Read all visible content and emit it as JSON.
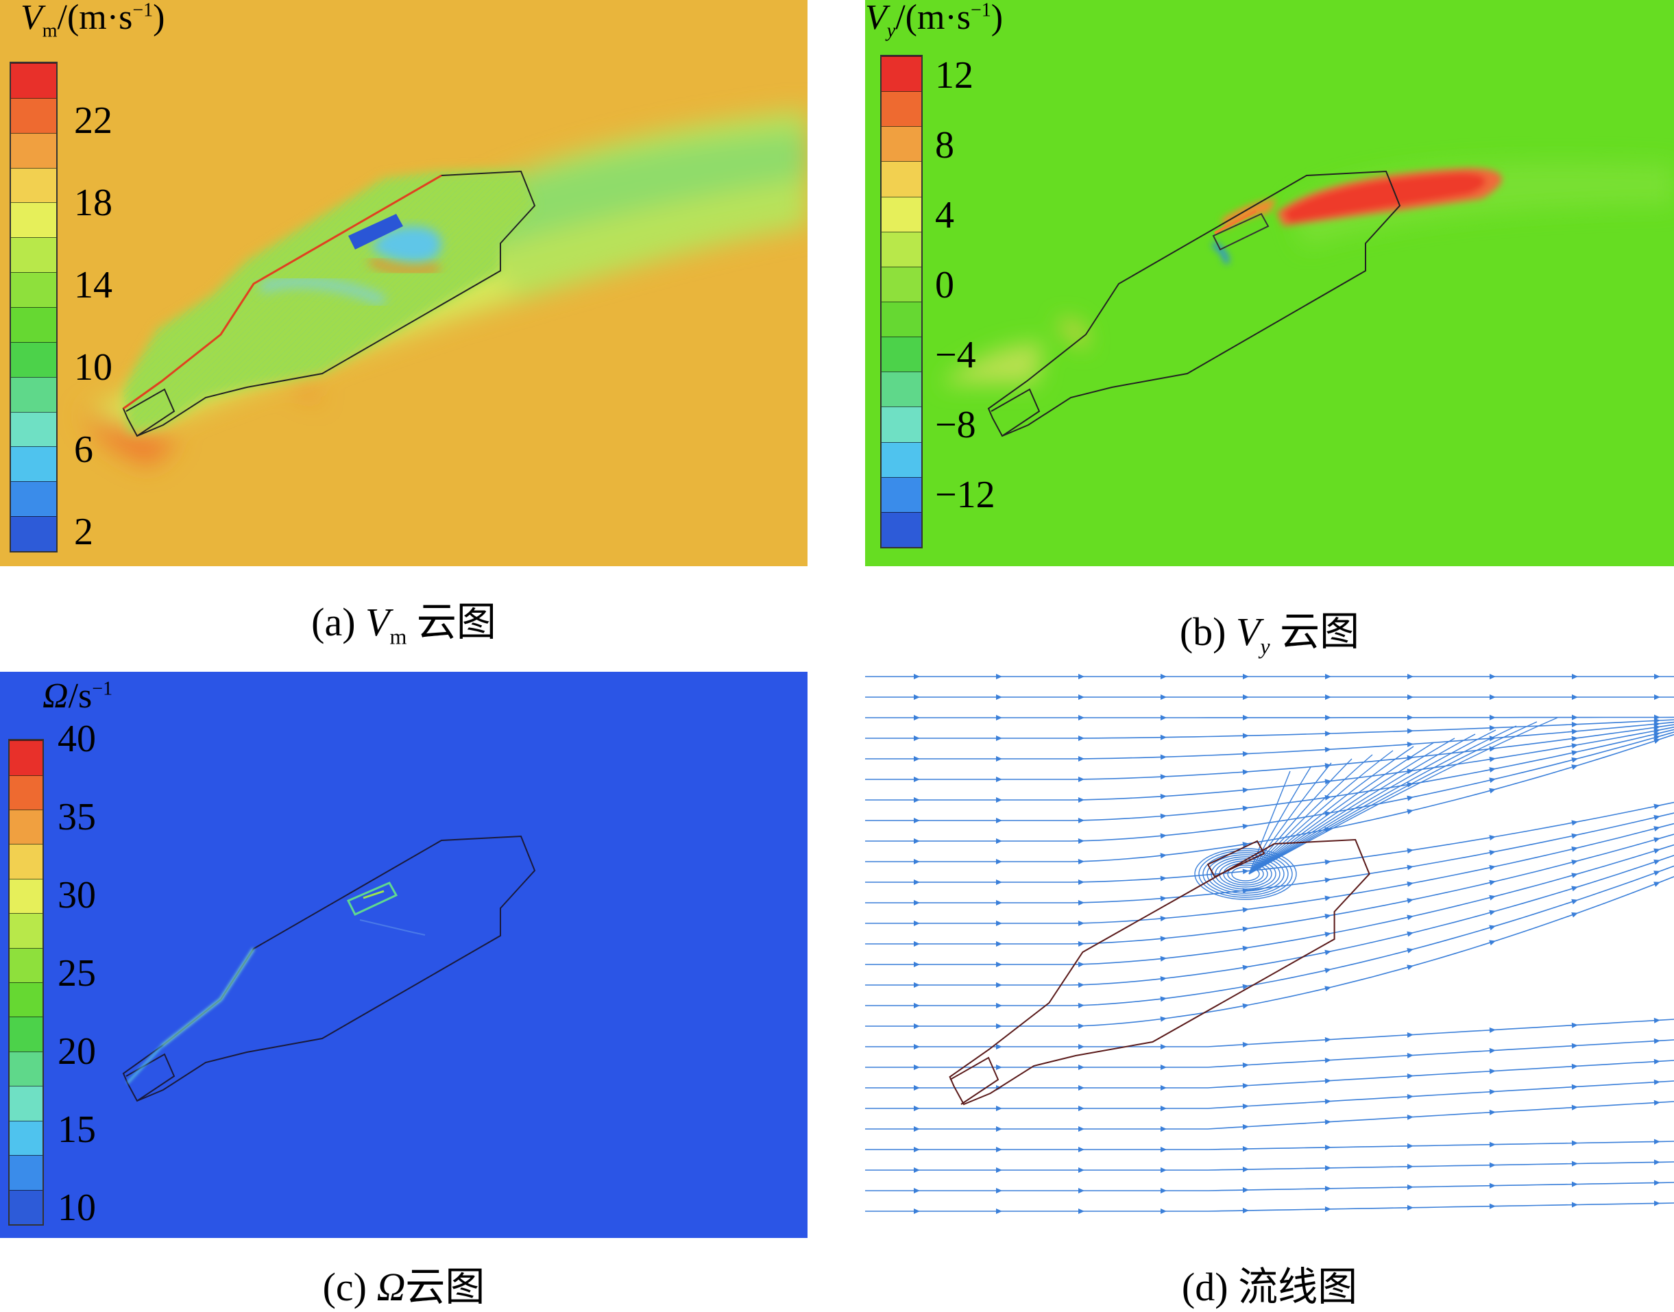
{
  "panels": [
    {
      "id": "a",
      "background": "#e9b53c",
      "colorbar": {
        "title_symbol": "V",
        "title_sub": "m",
        "title_unit": "/(m·s",
        "title_sup": "−1",
        "title_close": ")",
        "ticks": [
          "22",
          "18",
          "14",
          "10",
          "6",
          "2"
        ],
        "colors": [
          "#2d5bd8",
          "#3a8cea",
          "#4fc3ee",
          "#6fe0c4",
          "#5fd88a",
          "#4cd24a",
          "#66d832",
          "#8ee03c",
          "#b8e84a",
          "#e6ef5a",
          "#f2d050",
          "#f0a040",
          "#ee6a30",
          "#e8302a"
        ]
      },
      "caption_prefix": "(a) ",
      "caption_symbol": "V",
      "caption_sub": "m",
      "caption_suffix": " 云图"
    },
    {
      "id": "b",
      "background": "#66dd22",
      "colorbar": {
        "title_symbol": "V",
        "title_sub": "y",
        "title_unit": "/(m·s",
        "title_sup": "−1",
        "title_close": ")",
        "ticks": [
          "12",
          "8",
          "4",
          "0",
          "−4",
          "−8",
          "−12"
        ],
        "colors": [
          "#2d5bd8",
          "#3a8cea",
          "#4fc3ee",
          "#6fe0c4",
          "#5fd88a",
          "#4cd24a",
          "#66d832",
          "#8ee03c",
          "#b8e84a",
          "#e6ef5a",
          "#f2d050",
          "#f0a040",
          "#ee6a30",
          "#e8302a"
        ]
      },
      "caption_prefix": "(b) ",
      "caption_symbol": "V",
      "caption_sub": "y",
      "caption_suffix": " 云图"
    },
    {
      "id": "c",
      "background": "#2b55e6",
      "colorbar": {
        "title_symbol": "Ω",
        "title_unit": "/s",
        "title_sup": "−1",
        "ticks": [
          "40",
          "35",
          "30",
          "25",
          "20",
          "15",
          "10"
        ],
        "colors": [
          "#2d5bd8",
          "#3a8cea",
          "#4fc3ee",
          "#6fe0c4",
          "#5fd88a",
          "#4cd24a",
          "#66d832",
          "#8ee03c",
          "#b8e84a",
          "#e6ef5a",
          "#f2d050",
          "#f0a040",
          "#ee6a30",
          "#e8302a"
        ]
      },
      "caption_prefix": "(c) ",
      "caption_symbol": "Ω",
      "caption_suffix": "云图"
    },
    {
      "id": "d",
      "background": "#ffffff",
      "streamline_color": "#3a7fd9",
      "caption_prefix": "(d) ",
      "caption_suffix": "流线图"
    }
  ]
}
